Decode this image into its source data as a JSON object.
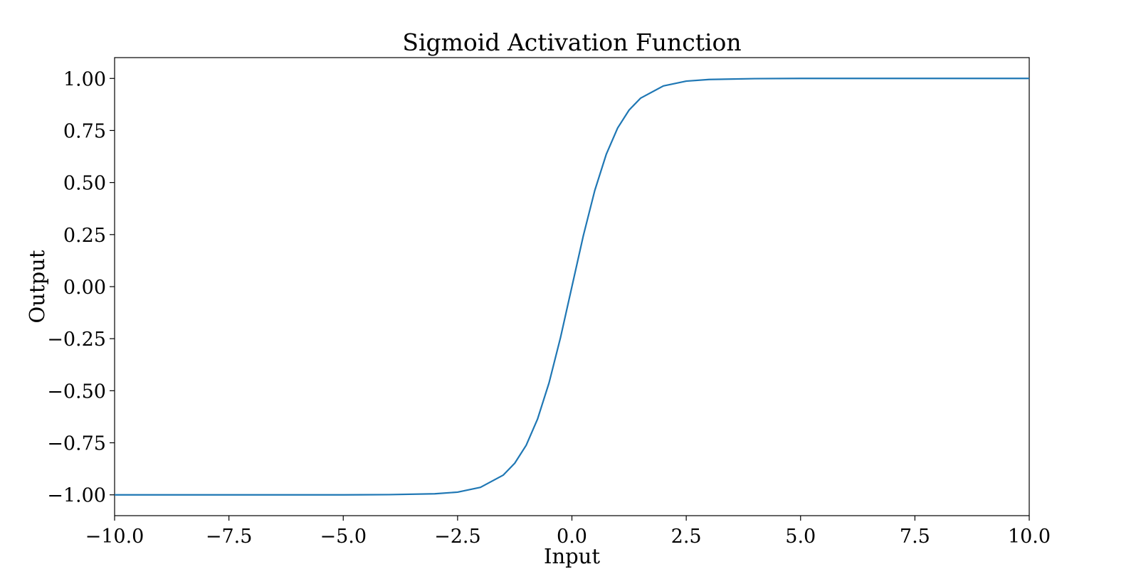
{
  "chart_data": {
    "type": "line",
    "title": "Sigmoid Activation Function",
    "xlabel": "Input",
    "ylabel": "Output",
    "xlim": [
      -10,
      10
    ],
    "ylim": [
      -1.1,
      1.1
    ],
    "x_ticks": [
      -10,
      -7.5,
      -5,
      -2.5,
      0,
      2.5,
      5,
      7.5,
      10
    ],
    "x_tick_labels": [
      "−10.0",
      "−7.5",
      "−5.0",
      "−2.5",
      "0.0",
      "2.5",
      "5.0",
      "7.5",
      "10.0"
    ],
    "y_ticks": [
      -1,
      -0.75,
      -0.5,
      -0.25,
      0,
      0.25,
      0.5,
      0.75,
      1
    ],
    "y_tick_labels": [
      "−1.00",
      "−0.75",
      "−0.50",
      "−0.25",
      "0.00",
      "0.25",
      "0.50",
      "0.75",
      "1.00"
    ],
    "grid": false,
    "series": [
      {
        "color": "#1f77b4",
        "x": [
          -10,
          -5,
          -4,
          -3,
          -2.5,
          -2,
          -1.5,
          -1.25,
          -1,
          -0.75,
          -0.5,
          -0.25,
          0,
          0.25,
          0.5,
          0.75,
          1,
          1.25,
          1.5,
          2,
          2.5,
          3,
          4,
          5,
          10
        ],
        "y": [
          -1,
          -1,
          -0.999,
          -0.995,
          -0.987,
          -0.964,
          -0.905,
          -0.848,
          -0.762,
          -0.635,
          -0.462,
          -0.245,
          0,
          0.245,
          0.462,
          0.635,
          0.762,
          0.848,
          0.905,
          0.964,
          0.987,
          0.995,
          0.999,
          1,
          1
        ]
      }
    ]
  }
}
